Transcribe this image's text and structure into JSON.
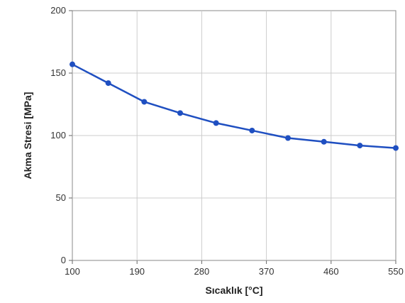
{
  "chart_data": {
    "type": "line",
    "title": "",
    "xlabel": "Sıcaklık [°C]",
    "ylabel": "Akma Stresi [MPa]",
    "xlim": [
      100,
      550
    ],
    "ylim": [
      0,
      200
    ],
    "xticks": [
      100,
      190,
      280,
      370,
      460,
      550
    ],
    "yticks": [
      0,
      50,
      100,
      150,
      200
    ],
    "xtick_labels": [
      "100",
      "190",
      "280",
      "370",
      "460",
      "550"
    ],
    "ytick_labels": [
      "0",
      "50",
      "100",
      "150",
      "200"
    ],
    "grid": true,
    "legend": "none",
    "series": [
      {
        "color": "#1f4fc1",
        "marker": "circle",
        "x": [
          100,
          150,
          200,
          250,
          300,
          350,
          400,
          450,
          500,
          550
        ],
        "y": [
          157,
          142,
          127,
          118,
          110,
          104,
          98,
          95,
          92,
          90
        ]
      }
    ]
  }
}
